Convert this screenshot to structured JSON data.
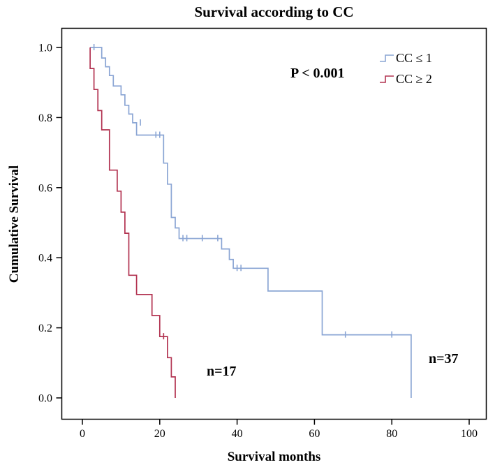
{
  "annotations": {
    "p_value": "P < 0.001",
    "n_red": "n=17",
    "n_blue": "n=37"
  },
  "chart_data": {
    "type": "line",
    "subtype": "kaplan-meier-step",
    "title": "Survival according to CC",
    "xlabel": "Survival months",
    "ylabel": "Cumulative Survival",
    "xlim": [
      -5,
      105
    ],
    "ylim": [
      -0.05,
      1.05
    ],
    "xticks": [
      0,
      20,
      40,
      60,
      80,
      100
    ],
    "yticks": [
      0.0,
      0.2,
      0.4,
      0.6,
      0.8,
      1.0
    ],
    "grid": false,
    "legend_position": "top-right",
    "frame_color": "#000000",
    "series": [
      {
        "name": "CC ≤ 1",
        "n": 37,
        "color": "#8aa5d4",
        "steps": [
          [
            2,
            1.0
          ],
          [
            5,
            1.0
          ],
          [
            5,
            0.97
          ],
          [
            6,
            0.97
          ],
          [
            6,
            0.945
          ],
          [
            7,
            0.945
          ],
          [
            7,
            0.92
          ],
          [
            8,
            0.92
          ],
          [
            8,
            0.89
          ],
          [
            10,
            0.89
          ],
          [
            10,
            0.865
          ],
          [
            11,
            0.865
          ],
          [
            11,
            0.835
          ],
          [
            12,
            0.835
          ],
          [
            12,
            0.81
          ],
          [
            13,
            0.81
          ],
          [
            13,
            0.785
          ],
          [
            14,
            0.785
          ],
          [
            14,
            0.75
          ],
          [
            21,
            0.75
          ],
          [
            21,
            0.67
          ],
          [
            22,
            0.67
          ],
          [
            22,
            0.61
          ],
          [
            23,
            0.61
          ],
          [
            23,
            0.515
          ],
          [
            24,
            0.515
          ],
          [
            24,
            0.485
          ],
          [
            25,
            0.485
          ],
          [
            25,
            0.455
          ],
          [
            36,
            0.455
          ],
          [
            36,
            0.425
          ],
          [
            38,
            0.425
          ],
          [
            38,
            0.395
          ],
          [
            39,
            0.395
          ],
          [
            39,
            0.37
          ],
          [
            48,
            0.37
          ],
          [
            48,
            0.305
          ],
          [
            62,
            0.305
          ],
          [
            62,
            0.18
          ],
          [
            85,
            0.18
          ],
          [
            85,
            0.0
          ]
        ],
        "censors": [
          [
            3,
            1.0
          ],
          [
            15,
            0.785
          ],
          [
            19,
            0.75
          ],
          [
            20,
            0.75
          ],
          [
            26,
            0.455
          ],
          [
            27,
            0.455
          ],
          [
            31,
            0.455
          ],
          [
            35,
            0.455
          ],
          [
            40,
            0.37
          ],
          [
            41,
            0.37
          ],
          [
            68,
            0.18
          ],
          [
            80,
            0.18
          ]
        ]
      },
      {
        "name": "CC ≥ 2",
        "n": 17,
        "color": "#b23351",
        "steps": [
          [
            2,
            1.0
          ],
          [
            2,
            0.94
          ],
          [
            3,
            0.94
          ],
          [
            3,
            0.88
          ],
          [
            4,
            0.88
          ],
          [
            4,
            0.82
          ],
          [
            5,
            0.82
          ],
          [
            5,
            0.765
          ],
          [
            7,
            0.765
          ],
          [
            7,
            0.65
          ],
          [
            9,
            0.65
          ],
          [
            9,
            0.59
          ],
          [
            10,
            0.59
          ],
          [
            10,
            0.53
          ],
          [
            11,
            0.53
          ],
          [
            11,
            0.47
          ],
          [
            12,
            0.47
          ],
          [
            12,
            0.35
          ],
          [
            14,
            0.35
          ],
          [
            14,
            0.295
          ],
          [
            18,
            0.295
          ],
          [
            18,
            0.235
          ],
          [
            20,
            0.235
          ],
          [
            20,
            0.175
          ],
          [
            22,
            0.175
          ],
          [
            22,
            0.115
          ],
          [
            23,
            0.115
          ],
          [
            23,
            0.06
          ],
          [
            24,
            0.06
          ],
          [
            24,
            0.0
          ]
        ],
        "censors": [
          [
            21,
            0.175
          ]
        ]
      }
    ]
  }
}
